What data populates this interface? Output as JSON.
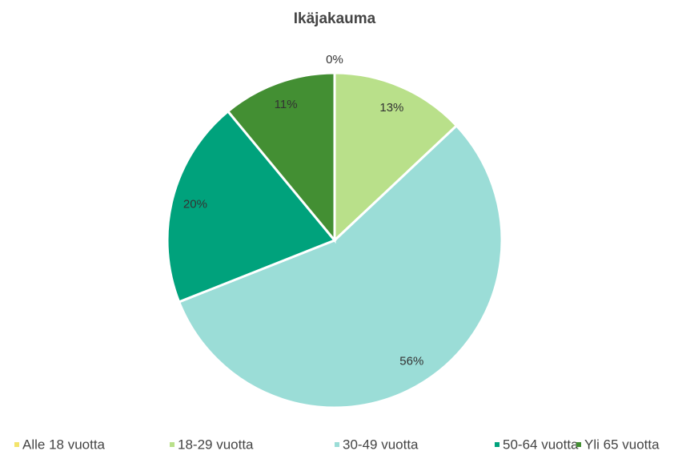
{
  "chart_data": {
    "type": "pie",
    "title": "Ikäjakauma",
    "categories": [
      "Alle 18 vuotta",
      "18-29 vuotta",
      "30-49 vuotta",
      "50-64 vuotta",
      "Yli 65 vuotta"
    ],
    "values": [
      0,
      13,
      56,
      20,
      11
    ],
    "value_labels": [
      "0%",
      "13%",
      "56%",
      "20%",
      "11%"
    ],
    "colors": [
      "#f3e46c",
      "#b9e08a",
      "#9bddd7",
      "#00a27c",
      "#438f33"
    ],
    "legend": "bottom"
  }
}
